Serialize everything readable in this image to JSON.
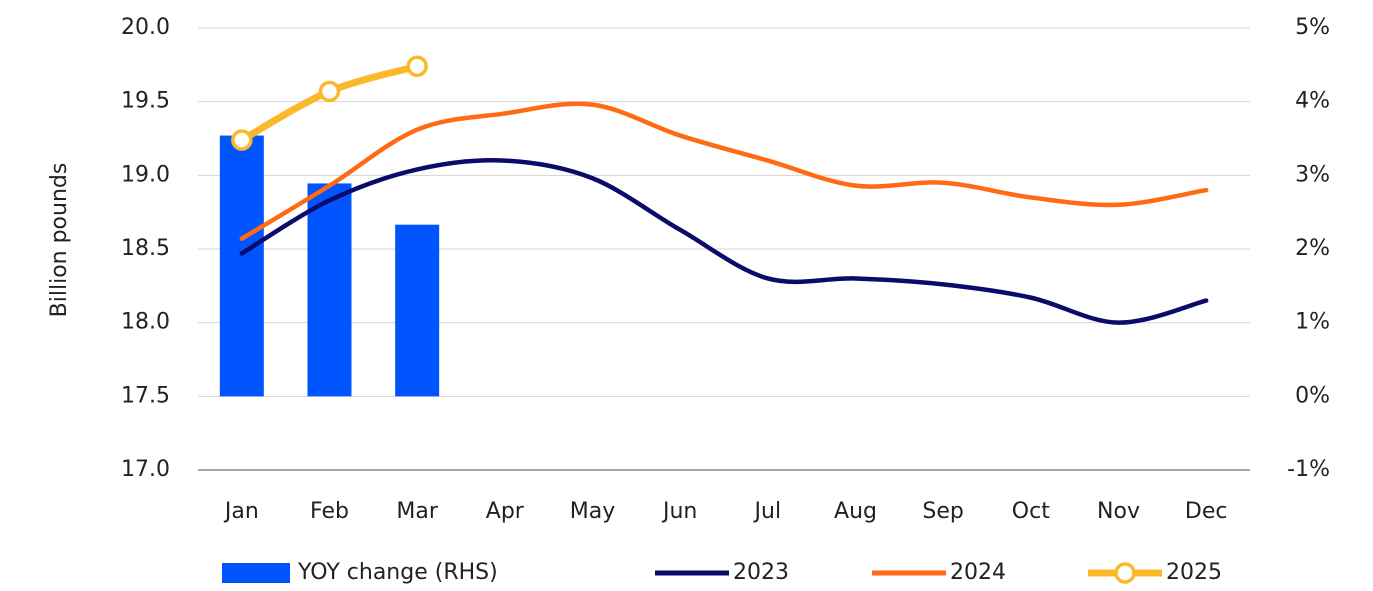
{
  "chart_data": {
    "type": "combo",
    "y_label": "Billion pounds",
    "categories": [
      "Jan",
      "Feb",
      "Mar",
      "Apr",
      "May",
      "Jun",
      "Jul",
      "Aug",
      "Sep",
      "Oct",
      "Nov",
      "Dec"
    ],
    "ylim": [
      17.0,
      20.0
    ],
    "yticks": [
      {
        "value": 17.0,
        "label": "17.0"
      },
      {
        "value": 17.5,
        "label": "17.5"
      },
      {
        "value": 18.0,
        "label": "18.0"
      },
      {
        "value": 18.5,
        "label": "18.5"
      },
      {
        "value": 19.0,
        "label": "19.0"
      },
      {
        "value": 19.5,
        "label": "19.5"
      },
      {
        "value": 20.0,
        "label": "20.0"
      }
    ],
    "y2lim": [
      -1,
      5
    ],
    "y2ticks": [
      {
        "value": -1,
        "label": "-1%"
      },
      {
        "value": 0,
        "label": "0%"
      },
      {
        "value": 1,
        "label": "1%"
      },
      {
        "value": 2,
        "label": "2%"
      },
      {
        "value": 3,
        "label": "3%"
      },
      {
        "value": 4,
        "label": "4%"
      },
      {
        "value": 5,
        "label": "5%"
      }
    ],
    "grid": true,
    "legend": "bottom",
    "series": [
      {
        "name": "YOY change (RHS)",
        "type": "bar",
        "axis": "y2",
        "color": "#0055ff",
        "values": [
          3.54,
          2.89,
          2.33,
          null,
          null,
          null,
          null,
          null,
          null,
          null,
          null,
          null
        ]
      },
      {
        "name": "2023",
        "type": "line",
        "color": "#0b0b6b",
        "values": [
          18.47,
          18.83,
          19.04,
          19.1,
          18.98,
          18.63,
          18.3,
          18.3,
          18.26,
          18.17,
          18.0,
          18.15
        ]
      },
      {
        "name": "2024",
        "type": "line",
        "color": "#ff6a13",
        "values": [
          18.57,
          18.93,
          19.31,
          19.42,
          19.48,
          19.27,
          19.1,
          18.93,
          18.95,
          18.85,
          18.8,
          18.9
        ]
      },
      {
        "name": "2025",
        "type": "line",
        "markers": true,
        "color": "#fbb829",
        "values": [
          19.24,
          19.57,
          19.74,
          null,
          null,
          null,
          null,
          null,
          null,
          null,
          null,
          null
        ]
      }
    ]
  }
}
